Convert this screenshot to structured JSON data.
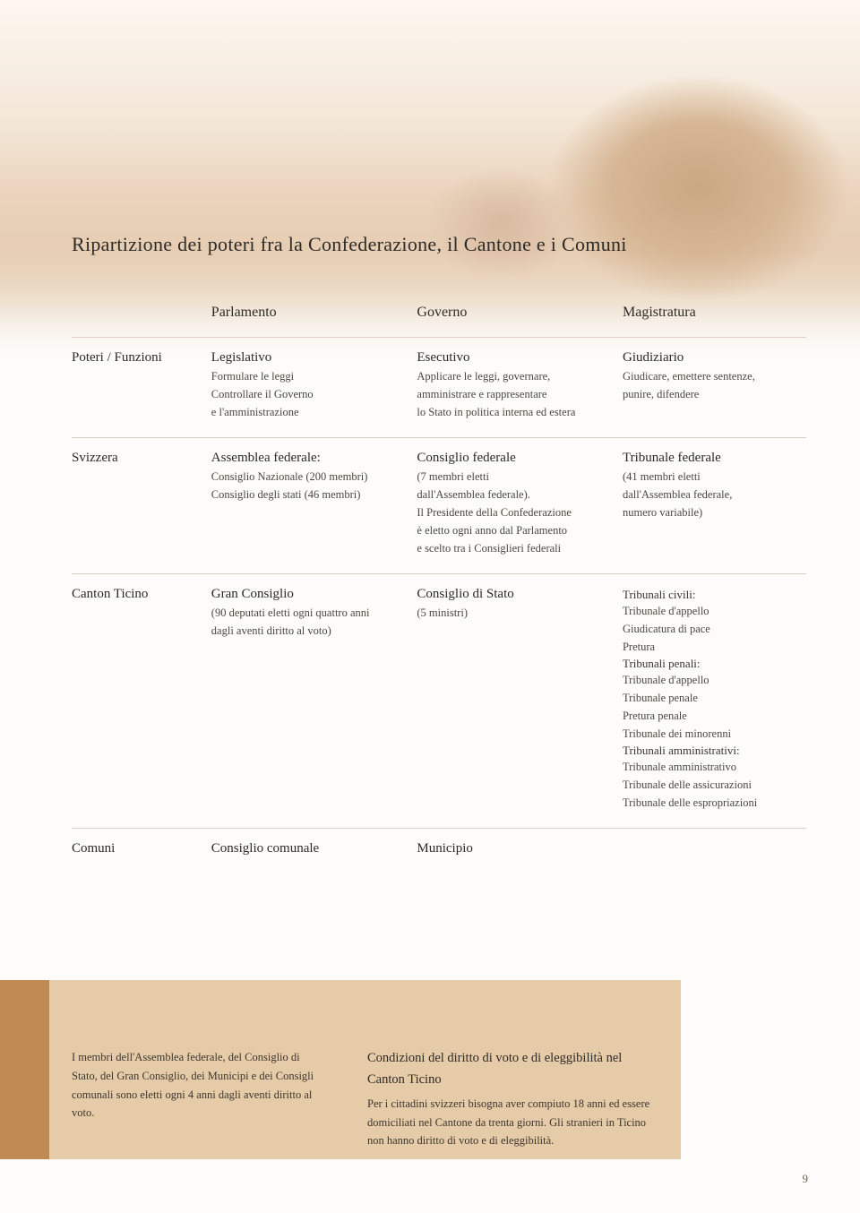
{
  "colors": {
    "text": "#3a3530",
    "text_soft": "#4d4740",
    "rule": "#d9cfc3",
    "strip_dark": "#c08a54",
    "strip_light": "#e6cba9",
    "background": "#fdfcfa"
  },
  "typography": {
    "title_fontsize": 22,
    "heading_fontsize": 16,
    "cell_strong_fontsize": 15,
    "body_fontsize": 13,
    "footnote_fontsize": 12.5,
    "font_family": "Georgia serif"
  },
  "page_title": "Ripartizione dei poteri fra la Confederazione, il Cantone e i Comuni",
  "table": {
    "columns": [
      "",
      "Parlamento",
      "Governo",
      "Magistratura"
    ],
    "rows": [
      {
        "label": "Poteri / Funzioni",
        "cells": [
          {
            "title": "Legislativo",
            "lines": [
              "Formulare le leggi",
              "Controllare il Governo",
              "e l'amministrazione"
            ]
          },
          {
            "title": "Esecutivo",
            "lines": [
              "Applicare le leggi, governare,",
              "amministrare e rappresentare",
              "lo Stato in politica interna ed estera"
            ]
          },
          {
            "title": "Giudiziario",
            "lines": [
              "Giudicare, emettere sentenze,",
              "punire, difendere"
            ]
          }
        ]
      },
      {
        "label": "Svizzera",
        "cells": [
          {
            "title": "Assemblea federale:",
            "lines": [
              "Consiglio Nazionale (200 membri)",
              "Consiglio degli stati (46 membri)"
            ]
          },
          {
            "title": "Consiglio federale",
            "lines": [
              "(7 membri eletti",
              "dall'Assemblea federale).",
              "Il Presidente della Confederazione",
              "è eletto ogni anno dal Parlamento",
              "e scelto tra i Consiglieri federali"
            ]
          },
          {
            "title": "Tribunale federale",
            "lines": [
              "(41 membri eletti",
              "dall'Assemblea federale,",
              "numero variabile)"
            ]
          }
        ]
      },
      {
        "label": "Canton Ticino",
        "cells": [
          {
            "title": "Gran Consiglio",
            "lines": [
              "(90 deputati eletti ogni quattro anni",
              "dagli aventi diritto al voto)"
            ]
          },
          {
            "title": "Consiglio di Stato",
            "lines": [
              "(5 ministri)"
            ]
          },
          {
            "groups": [
              {
                "heading": "Tribunali civili:",
                "items": [
                  "Tribunale d'appello",
                  "Giudicatura di pace",
                  "Pretura"
                ]
              },
              {
                "heading": "Tribunali penali:",
                "items": [
                  "Tribunale d'appello",
                  "Tribunale penale",
                  "Pretura penale",
                  "Tribunale dei minorenni"
                ]
              },
              {
                "heading": "Tribunali amministrativi:",
                "items": [
                  "Tribunale amministrativo",
                  "Tribunale delle assicurazioni",
                  "Tribunale delle espropriazioni"
                ]
              }
            ]
          }
        ]
      },
      {
        "label": "Comuni",
        "cells": [
          {
            "title": "Consiglio comunale",
            "lines": []
          },
          {
            "title": "Municipio",
            "lines": []
          },
          {
            "title": "",
            "lines": []
          }
        ]
      }
    ]
  },
  "footnotes": {
    "left": "I membri dell'Assemblea federale, del Consiglio di Stato, del Gran Consiglio, dei Municipi e dei Consigli comunali sono eletti ogni 4 anni dagli aventi diritto al voto.",
    "right_title": "Condizioni del diritto di voto e di eleggibilità nel Canton Ticino",
    "right_body": "Per i cittadini svizzeri bisogna aver compiuto 18 anni ed essere domiciliati nel Cantone da trenta giorni. Gli stranieri in Ticino non hanno diritto di voto e di eleggibilità."
  },
  "page_number": "9"
}
